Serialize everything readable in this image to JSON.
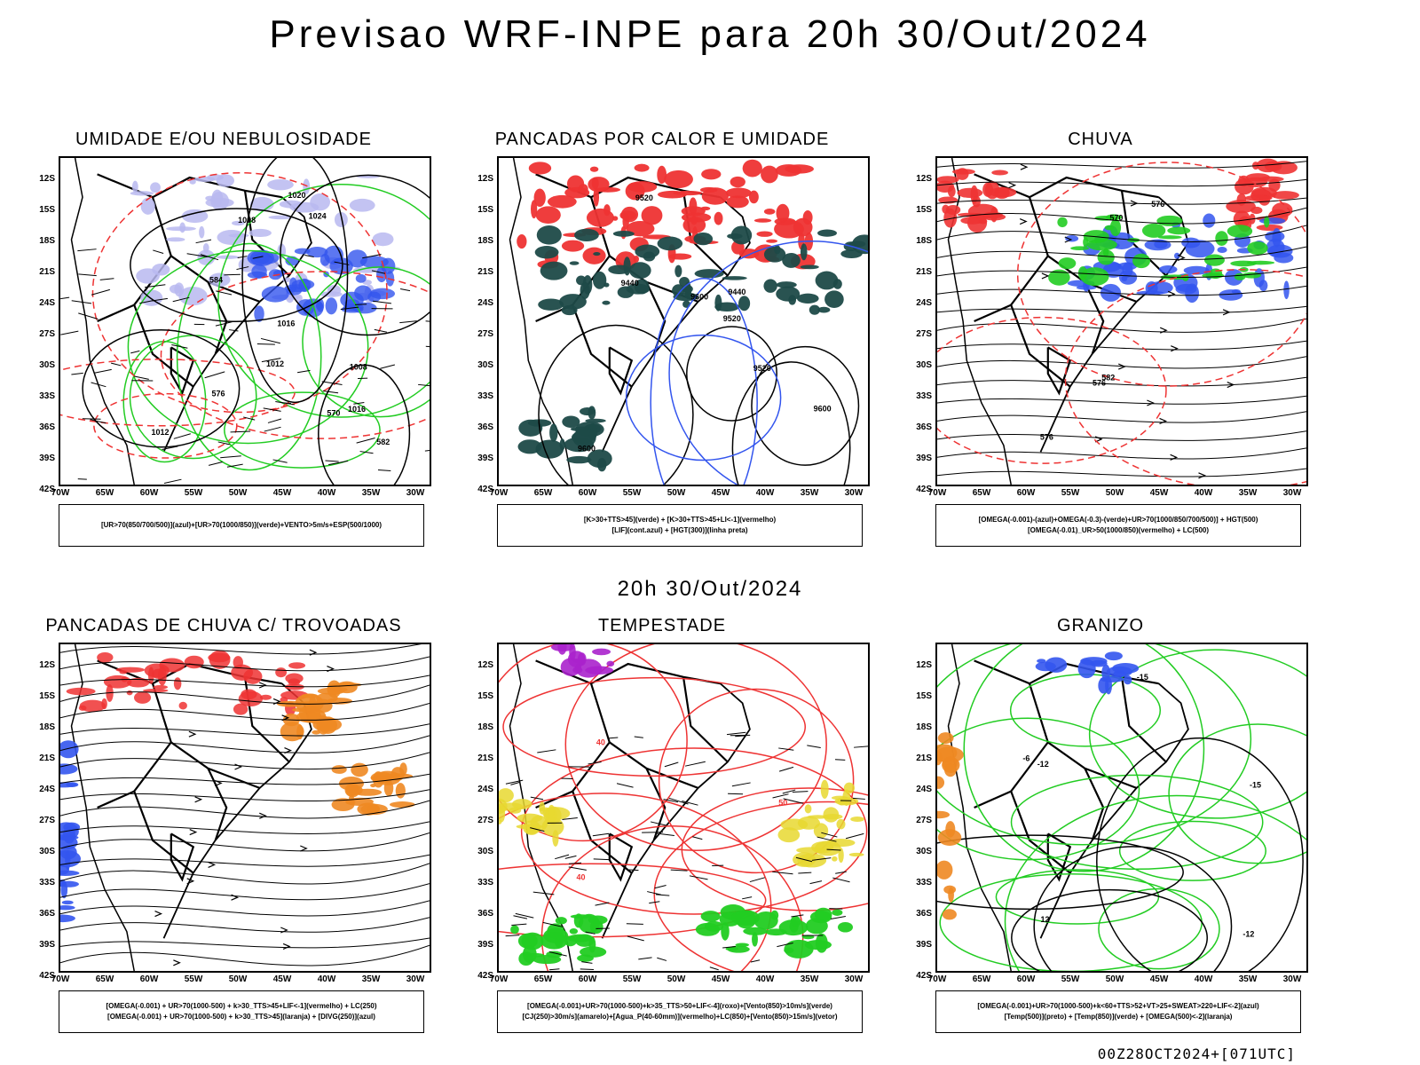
{
  "title": "Previsao WRF-INPE  para 20h 30/Out/2024",
  "subtitle": "20h 30/Out/2024",
  "footer": "00Z28OCT2024+[071UTC]",
  "lat_labels": [
    "12S",
    "15S",
    "18S",
    "21S",
    "24S",
    "27S",
    "30S",
    "33S",
    "36S",
    "39S",
    "42S"
  ],
  "lon_labels": [
    "70W",
    "65W",
    "60W",
    "55W",
    "50W",
    "45W",
    "40W",
    "35W",
    "30W"
  ],
  "colors": {
    "green": "#22cc22",
    "red": "#ee3333",
    "blue": "#3355ee",
    "lightblue": "#b8b8f0",
    "darkteal": "#1e4a48",
    "orange": "#ee8822",
    "yellow": "#e8d830",
    "purple": "#aa22cc",
    "black": "#000000"
  },
  "panels": [
    {
      "title": "UMIDADE E/OU NEBULOSIDADE",
      "legend": [
        "[UR>70(850/700/500)](azul)+[UR>70(1000/850)](verde)+VENTO>5m/s+ESP(500/1000)"
      ],
      "contour_labels": [
        "1012",
        "1008",
        "1016",
        "1012",
        "1008",
        "1020",
        "1016",
        "1024",
        "570",
        "576",
        "582",
        "584"
      ]
    },
    {
      "title": "PANCADAS POR CALOR E UMIDADE",
      "legend": [
        "[K>30+TTS>45](verde) + [K>30+TTS>45+LI<-1](vermelho)",
        "[LIF](cont.azul) + [HGT(300)](linha preta)"
      ],
      "contour_labels": [
        "9600",
        "9600",
        "9520",
        "9440",
        "9520",
        "9440",
        "9520",
        "9600"
      ]
    },
    {
      "title": "CHUVA",
      "legend": [
        "[OMEGA(-0.001)-(azul)+OMEGA(-0.3)-(verde)+UR>70(1000/850/700/500)] + HGT(500)",
        "[OMEGA(-0.01)_UR>50(1000/850)(vermelho) + LC(500)"
      ],
      "contour_labels": [
        "576",
        "582",
        "576",
        "576",
        "570"
      ]
    },
    {
      "title": "PANCADAS DE CHUVA C/ TROVOADAS",
      "legend": [
        "[OMEGA(-0.001) + UR>70(1000-500) + k>30_TTS>45+LIF<-1](vermelho) + LC(250)",
        "[OMEGA(-0.001) + UR>70(1000-500) + k>30_TTS>45](laranja) + [DIVG(250)](azul)"
      ],
      "contour_labels": []
    },
    {
      "title": "TEMPESTADE",
      "legend": [
        "[OMEGA(-0.001)+UR>70(1000-500)+k>35_TTS>50+LIF<-4](roxo)+[Vento(850)>10m/s](verde)",
        "[CJ(250)>30m/s](amarelo)+[Agua_P(40-60mm)](vermelho)+LC(850)+[Vento(850)>15m/s](vetor)"
      ],
      "contour_labels": [
        "40",
        "40",
        "50"
      ]
    },
    {
      "title": "GRANIZO",
      "legend": [
        "[OMEGA(-0.001)+UR>70(1000-500)+k<60+TTS>52+VT>25+SWEAT>220+LIF<-2](azul)",
        "[Temp(500)](preto) + [Temp(850)](verde) + [OMEGA(500)<-2](laranja)"
      ],
      "contour_labels": [
        "-6",
        "12",
        "-15",
        "-12",
        "-15",
        "-12"
      ]
    }
  ]
}
